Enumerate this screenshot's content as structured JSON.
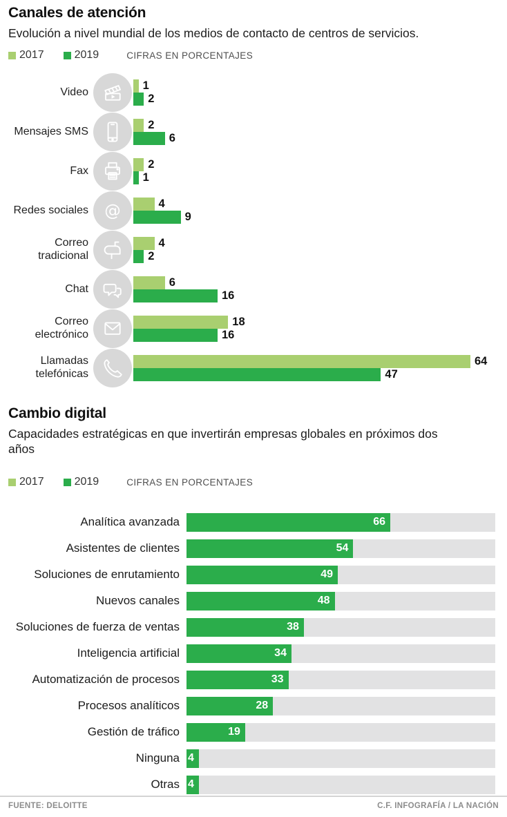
{
  "page": {
    "footer": {
      "source": "FUENTE: DELOITTE",
      "credit": "C.F. INFOGRAFÍA / LA NACIÓN"
    }
  },
  "colors": {
    "green_2017": "#a9cf70",
    "green_2019": "#2bad4b",
    "bar_track": "#e2e2e3",
    "icon_circle": "#d8d8d8",
    "footer_text": "#8c8c8c"
  },
  "chart_data": [
    {
      "type": "bar",
      "orientation": "horizontal-grouped",
      "title": "Canales de atención",
      "subtitle": "Evolución a nivel mundial de los medios de contacto de centros de servicios.",
      "units_note": "CIFRAS EN PORCENTAJES",
      "legend": [
        {
          "label": "2017",
          "color": "#a9cf70"
        },
        {
          "label": "2019",
          "color": "#2bad4b"
        }
      ],
      "xlim": [
        0,
        64
      ],
      "grid": false,
      "categories": [
        "Video",
        "Mensajes SMS",
        "Fax",
        "Redes sociales",
        "Correo tradicional",
        "Chat",
        "Correo electrónico",
        "Llamadas telefónicas"
      ],
      "icons": [
        "video-clapperboard-icon",
        "smartphone-icon",
        "fax-printer-icon",
        "at-sign-icon",
        "mailbox-icon",
        "chat-bubbles-icon",
        "envelope-icon",
        "phone-handset-icon"
      ],
      "series": [
        {
          "name": "2017",
          "values": [
            1,
            2,
            2,
            4,
            4,
            6,
            18,
            64
          ]
        },
        {
          "name": "2019",
          "values": [
            2,
            6,
            1,
            9,
            2,
            16,
            16,
            47
          ]
        }
      ]
    },
    {
      "type": "bar",
      "orientation": "horizontal",
      "title": "Cambio digital",
      "subtitle": "Capacidades estratégicas en que invertirán empresas globales en próximos dos años",
      "units_note": "CIFRAS EN PORCENTAJES",
      "legend": [
        {
          "label": "2017",
          "color": "#a9cf70"
        },
        {
          "label": "2019",
          "color": "#2bad4b"
        }
      ],
      "xlim": [
        0,
        100
      ],
      "grid": false,
      "series_name": "2019",
      "categories": [
        "Analítica avanzada",
        "Asistentes de clientes",
        "Soluciones de enrutamiento",
        "Nuevos canales",
        "Soluciones de fuerza de ventas",
        "Inteligencia artificial",
        "Automatización de procesos",
        "Procesos analíticos",
        "Gestión de tráfico",
        "Ninguna",
        "Otras"
      ],
      "values": [
        66,
        54,
        49,
        48,
        38,
        34,
        33,
        28,
        19,
        4,
        4
      ]
    }
  ]
}
